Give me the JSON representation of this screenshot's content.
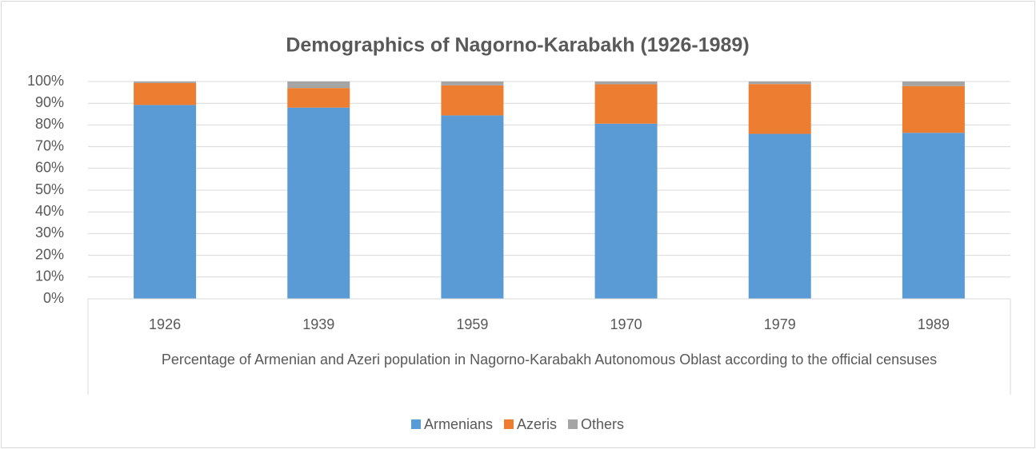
{
  "chart_data": {
    "type": "stacked_bar",
    "title": "Demographics of Nagorno-Karabakh (1926-1989)",
    "x_label": "Percentage of Armenian and Azeri population in Nagorno-Karabakh Autonomous Oblast according to the official censuses",
    "categories": [
      "1926",
      "1939",
      "1959",
      "1970",
      "1979",
      "1989"
    ],
    "series": [
      {
        "name": "Armenians",
        "color": "#5b9bd5",
        "values": [
          89.2,
          88.0,
          84.4,
          80.6,
          75.9,
          76.4
        ]
      },
      {
        "name": "Azeris",
        "color": "#ed7d31",
        "values": [
          10.1,
          9.0,
          13.8,
          18.1,
          22.9,
          21.5
        ]
      },
      {
        "name": "Others",
        "color": "#a5a5a5",
        "values": [
          0.7,
          3.0,
          1.8,
          1.3,
          1.2,
          2.1
        ]
      }
    ],
    "ylim": [
      0,
      100
    ],
    "yticks": [
      {
        "value": 0,
        "label": "0%"
      },
      {
        "value": 10,
        "label": "10%"
      },
      {
        "value": 20,
        "label": "20%"
      },
      {
        "value": 30,
        "label": "30%"
      },
      {
        "value": 40,
        "label": "40%"
      },
      {
        "value": 50,
        "label": "50%"
      },
      {
        "value": 60,
        "label": "60%"
      },
      {
        "value": 70,
        "label": "70%"
      },
      {
        "value": 80,
        "label": "80%"
      },
      {
        "value": 90,
        "label": "90%"
      },
      {
        "value": 100,
        "label": "100%"
      }
    ],
    "grid": true,
    "legend": "bottom"
  }
}
